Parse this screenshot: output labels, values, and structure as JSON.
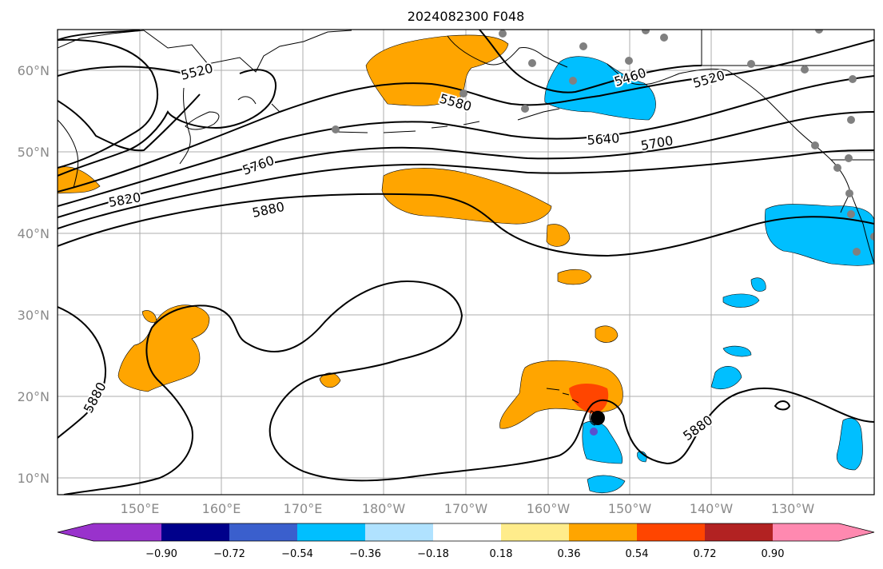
{
  "title": "2024082300 F048",
  "map": {
    "lat_ticks": [
      "10°N",
      "20°N",
      "30°N",
      "40°N",
      "50°N",
      "60°N"
    ],
    "lon_ticks": [
      "150°E",
      "160°E",
      "170°E",
      "180°W",
      "170°W",
      "160°W",
      "150°W",
      "140°W",
      "130°W"
    ],
    "contour_labels": [
      "5520",
      "5580",
      "5460",
      "5520",
      "5640",
      "5700",
      "5760",
      "5820",
      "5880",
      "5880",
      "5880"
    ]
  },
  "colorbar": {
    "tick_labels": [
      "−0.90",
      "−0.72",
      "−0.54",
      "−0.36",
      "−0.18",
      "0.18",
      "0.36",
      "0.54",
      "0.72",
      "0.90"
    ],
    "colors": [
      "#9932CC",
      "#00008B",
      "#3A5FCD",
      "#00BFFF",
      "#B0E2FF",
      "#FFFFFF",
      "#FFEC8B",
      "#FFA500",
      "#FF4500",
      "#B22222",
      "#FF89B0"
    ]
  },
  "colors": {
    "positive_anomaly": "#FFA500",
    "strong_positive": "#FF4500",
    "negative_anomaly": "#00BFFF",
    "station": "#808080",
    "marker": "#000000"
  }
}
